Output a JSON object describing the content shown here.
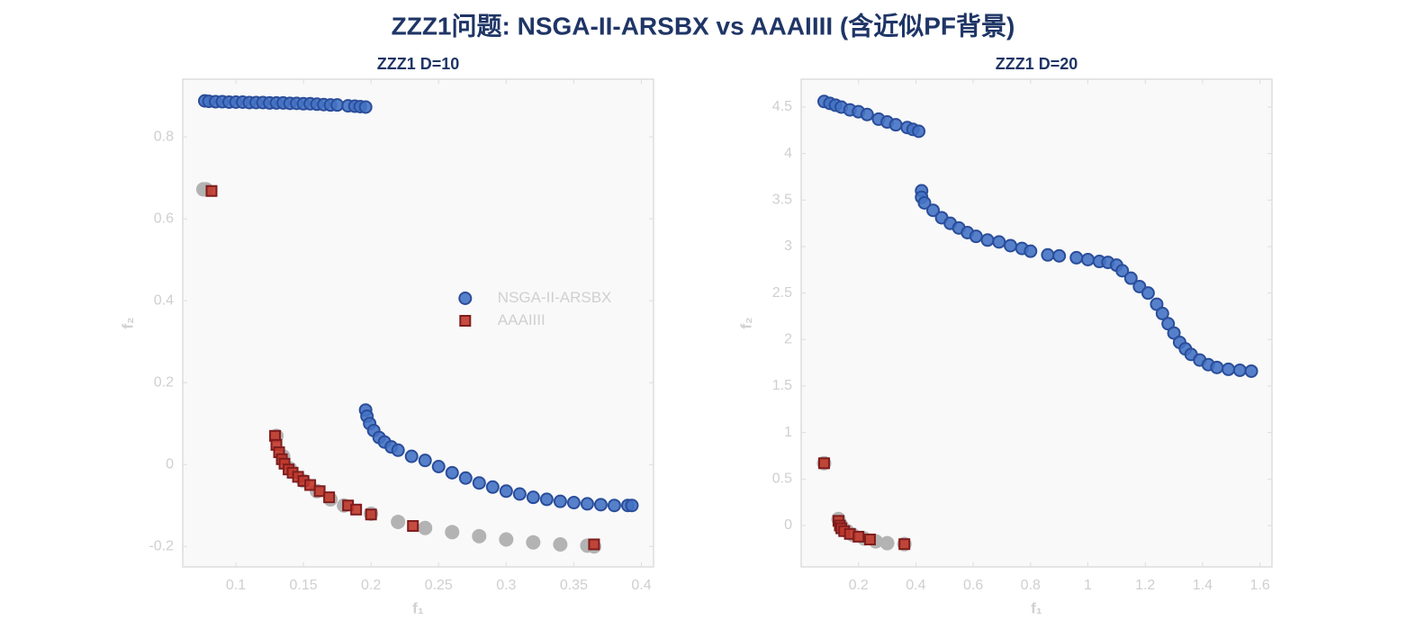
{
  "title": "ZZZ1问题: NSGA-II-ARSBX vs AAAIIII (含近似PF背景)",
  "chart_data": [
    {
      "type": "scatter",
      "title": "ZZZ1 D=10",
      "xlabel": "f₁",
      "ylabel": "f₂",
      "xlim": [
        0.0607,
        0.409
      ],
      "ylim": [
        -0.25,
        0.941
      ],
      "xticks": [
        0.1,
        0.15,
        0.2,
        0.25,
        0.3,
        0.35,
        0.4
      ],
      "yticks": [
        -0.2,
        0,
        0.2,
        0.4,
        0.6,
        0.8
      ],
      "legend": "center right",
      "series": [
        {
          "color": "#b3b3b3",
          "marker": "o",
          "x": [
            0.076,
            0.078,
            0.13,
            0.135,
            0.14,
            0.15,
            0.16,
            0.17,
            0.18,
            0.2,
            0.22,
            0.24,
            0.26,
            0.28,
            0.3,
            0.32,
            0.34,
            0.36,
            0.365
          ],
          "values": [
            0.672,
            0.672,
            0.07,
            0.02,
            -0.01,
            -0.04,
            -0.065,
            -0.085,
            -0.1,
            -0.12,
            -0.14,
            -0.155,
            -0.165,
            -0.175,
            -0.183,
            -0.19,
            -0.195,
            -0.198,
            -0.2
          ]
        },
        {
          "name": "NSGA-II-ARSBX",
          "color": "#4472c4",
          "marker": "o",
          "x": [
            0.077,
            0.08,
            0.085,
            0.09,
            0.095,
            0.1,
            0.105,
            0.11,
            0.115,
            0.12,
            0.125,
            0.13,
            0.135,
            0.14,
            0.145,
            0.15,
            0.155,
            0.16,
            0.165,
            0.17,
            0.175,
            0.183,
            0.188,
            0.192,
            0.196,
            0.196,
            0.197,
            0.199,
            0.202,
            0.206,
            0.21,
            0.215,
            0.22,
            0.23,
            0.24,
            0.25,
            0.26,
            0.27,
            0.28,
            0.29,
            0.3,
            0.31,
            0.32,
            0.33,
            0.34,
            0.35,
            0.36,
            0.37,
            0.38,
            0.39,
            0.393
          ],
          "values": [
            0.888,
            0.887,
            0.886,
            0.886,
            0.885,
            0.885,
            0.885,
            0.884,
            0.884,
            0.884,
            0.883,
            0.883,
            0.883,
            0.882,
            0.882,
            0.881,
            0.881,
            0.88,
            0.879,
            0.878,
            0.878,
            0.876,
            0.875,
            0.874,
            0.873,
            0.133,
            0.118,
            0.1,
            0.083,
            0.066,
            0.055,
            0.043,
            0.035,
            0.02,
            0.01,
            -0.005,
            -0.02,
            -0.033,
            -0.045,
            -0.055,
            -0.065,
            -0.072,
            -0.08,
            -0.085,
            -0.09,
            -0.093,
            -0.096,
            -0.098,
            -0.1,
            -0.1,
            -0.1
          ]
        },
        {
          "name": "AAAIIII",
          "color": "#c0392b",
          "marker": "s",
          "x": [
            0.082,
            0.129,
            0.13,
            0.132,
            0.134,
            0.136,
            0.139,
            0.142,
            0.146,
            0.15,
            0.155,
            0.162,
            0.169,
            0.183,
            0.189,
            0.2,
            0.231,
            0.365
          ],
          "values": [
            0.668,
            0.07,
            0.048,
            0.03,
            0.013,
            0.002,
            -0.012,
            -0.02,
            -0.03,
            -0.04,
            -0.05,
            -0.065,
            -0.08,
            -0.1,
            -0.11,
            -0.122,
            -0.15,
            -0.195
          ]
        }
      ]
    },
    {
      "type": "scatter",
      "title": "ZZZ1 D=20",
      "xlabel": "f₁",
      "ylabel": "f₂",
      "xlim": [
        0.0,
        1.642
      ],
      "ylim": [
        -0.445,
        4.8
      ],
      "xticks": [
        0.2,
        0.4,
        0.6,
        0.8,
        1,
        1.2,
        1.4,
        1.6
      ],
      "yticks": [
        0,
        0.5,
        1,
        1.5,
        2,
        2.5,
        3,
        3.5,
        4,
        4.5
      ],
      "series": [
        {
          "color": "#b3b3b3",
          "marker": "o",
          "x": [
            0.08,
            0.13,
            0.14,
            0.16,
            0.18,
            0.22,
            0.26,
            0.3,
            0.36
          ],
          "values": [
            0.67,
            0.07,
            0.0,
            -0.06,
            -0.1,
            -0.14,
            -0.17,
            -0.19,
            -0.2
          ]
        },
        {
          "name": "NSGA-II-ARSBX",
          "color": "#4472c4",
          "marker": "o",
          "x": [
            0.08,
            0.1,
            0.12,
            0.14,
            0.17,
            0.2,
            0.23,
            0.27,
            0.3,
            0.33,
            0.37,
            0.39,
            0.41,
            0.42,
            0.42,
            0.43,
            0.46,
            0.49,
            0.52,
            0.55,
            0.58,
            0.61,
            0.65,
            0.69,
            0.73,
            0.77,
            0.8,
            0.86,
            0.9,
            0.96,
            1.0,
            1.04,
            1.07,
            1.1,
            1.12,
            1.15,
            1.18,
            1.21,
            1.24,
            1.26,
            1.28,
            1.3,
            1.32,
            1.34,
            1.36,
            1.39,
            1.42,
            1.45,
            1.49,
            1.53,
            1.57
          ],
          "values": [
            4.56,
            4.54,
            4.52,
            4.5,
            4.47,
            4.45,
            4.42,
            4.37,
            4.34,
            4.31,
            4.28,
            4.26,
            4.24,
            3.6,
            3.53,
            3.47,
            3.39,
            3.31,
            3.25,
            3.2,
            3.15,
            3.11,
            3.07,
            3.05,
            3.01,
            2.98,
            2.95,
            2.91,
            2.9,
            2.88,
            2.86,
            2.84,
            2.83,
            2.8,
            2.74,
            2.66,
            2.57,
            2.5,
            2.38,
            2.28,
            2.17,
            2.07,
            1.97,
            1.9,
            1.84,
            1.78,
            1.73,
            1.7,
            1.68,
            1.67,
            1.66
          ]
        },
        {
          "name": "AAAIIII",
          "color": "#c0392b",
          "marker": "s",
          "x": [
            0.08,
            0.13,
            0.135,
            0.14,
            0.15,
            0.17,
            0.2,
            0.24,
            0.36
          ],
          "values": [
            0.67,
            0.05,
            0.0,
            -0.03,
            -0.06,
            -0.09,
            -0.12,
            -0.15,
            -0.2
          ]
        }
      ]
    }
  ]
}
